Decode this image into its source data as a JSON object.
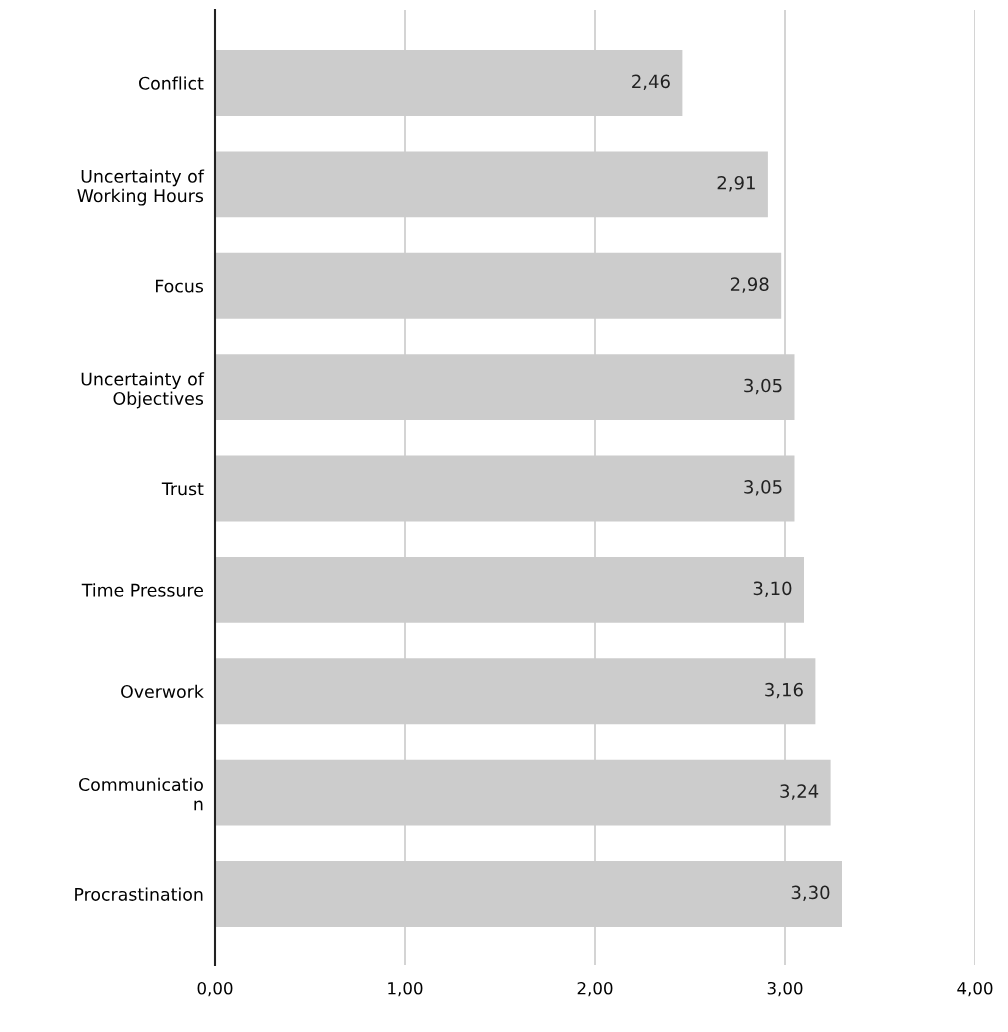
{
  "chart_data": {
    "type": "bar",
    "orientation": "horizontal",
    "categories": [
      "Conflict",
      "Uncertainty of\nWorking Hours",
      "Focus",
      "Uncertainty of\nObjectives",
      "Trust",
      "Time Pressure",
      "Overwork",
      "Communicatio\nn",
      "Procrastination"
    ],
    "values": [
      2.46,
      2.91,
      2.98,
      3.05,
      3.05,
      3.1,
      3.16,
      3.24,
      3.3
    ],
    "value_labels": [
      "2,46",
      "2,91",
      "2,98",
      "3,05",
      "3,05",
      "3,10",
      "3,16",
      "3,24",
      "3,30"
    ],
    "color": "#cccccc",
    "xlim": [
      0,
      4
    ],
    "xticks": [
      {
        "value": 0,
        "label": "0,00"
      },
      {
        "value": 1,
        "label": "1,00"
      },
      {
        "value": 2,
        "label": "2,00"
      },
      {
        "value": 3,
        "label": "3,00"
      },
      {
        "value": 4,
        "label": "4,00"
      }
    ],
    "grid": "x"
  }
}
